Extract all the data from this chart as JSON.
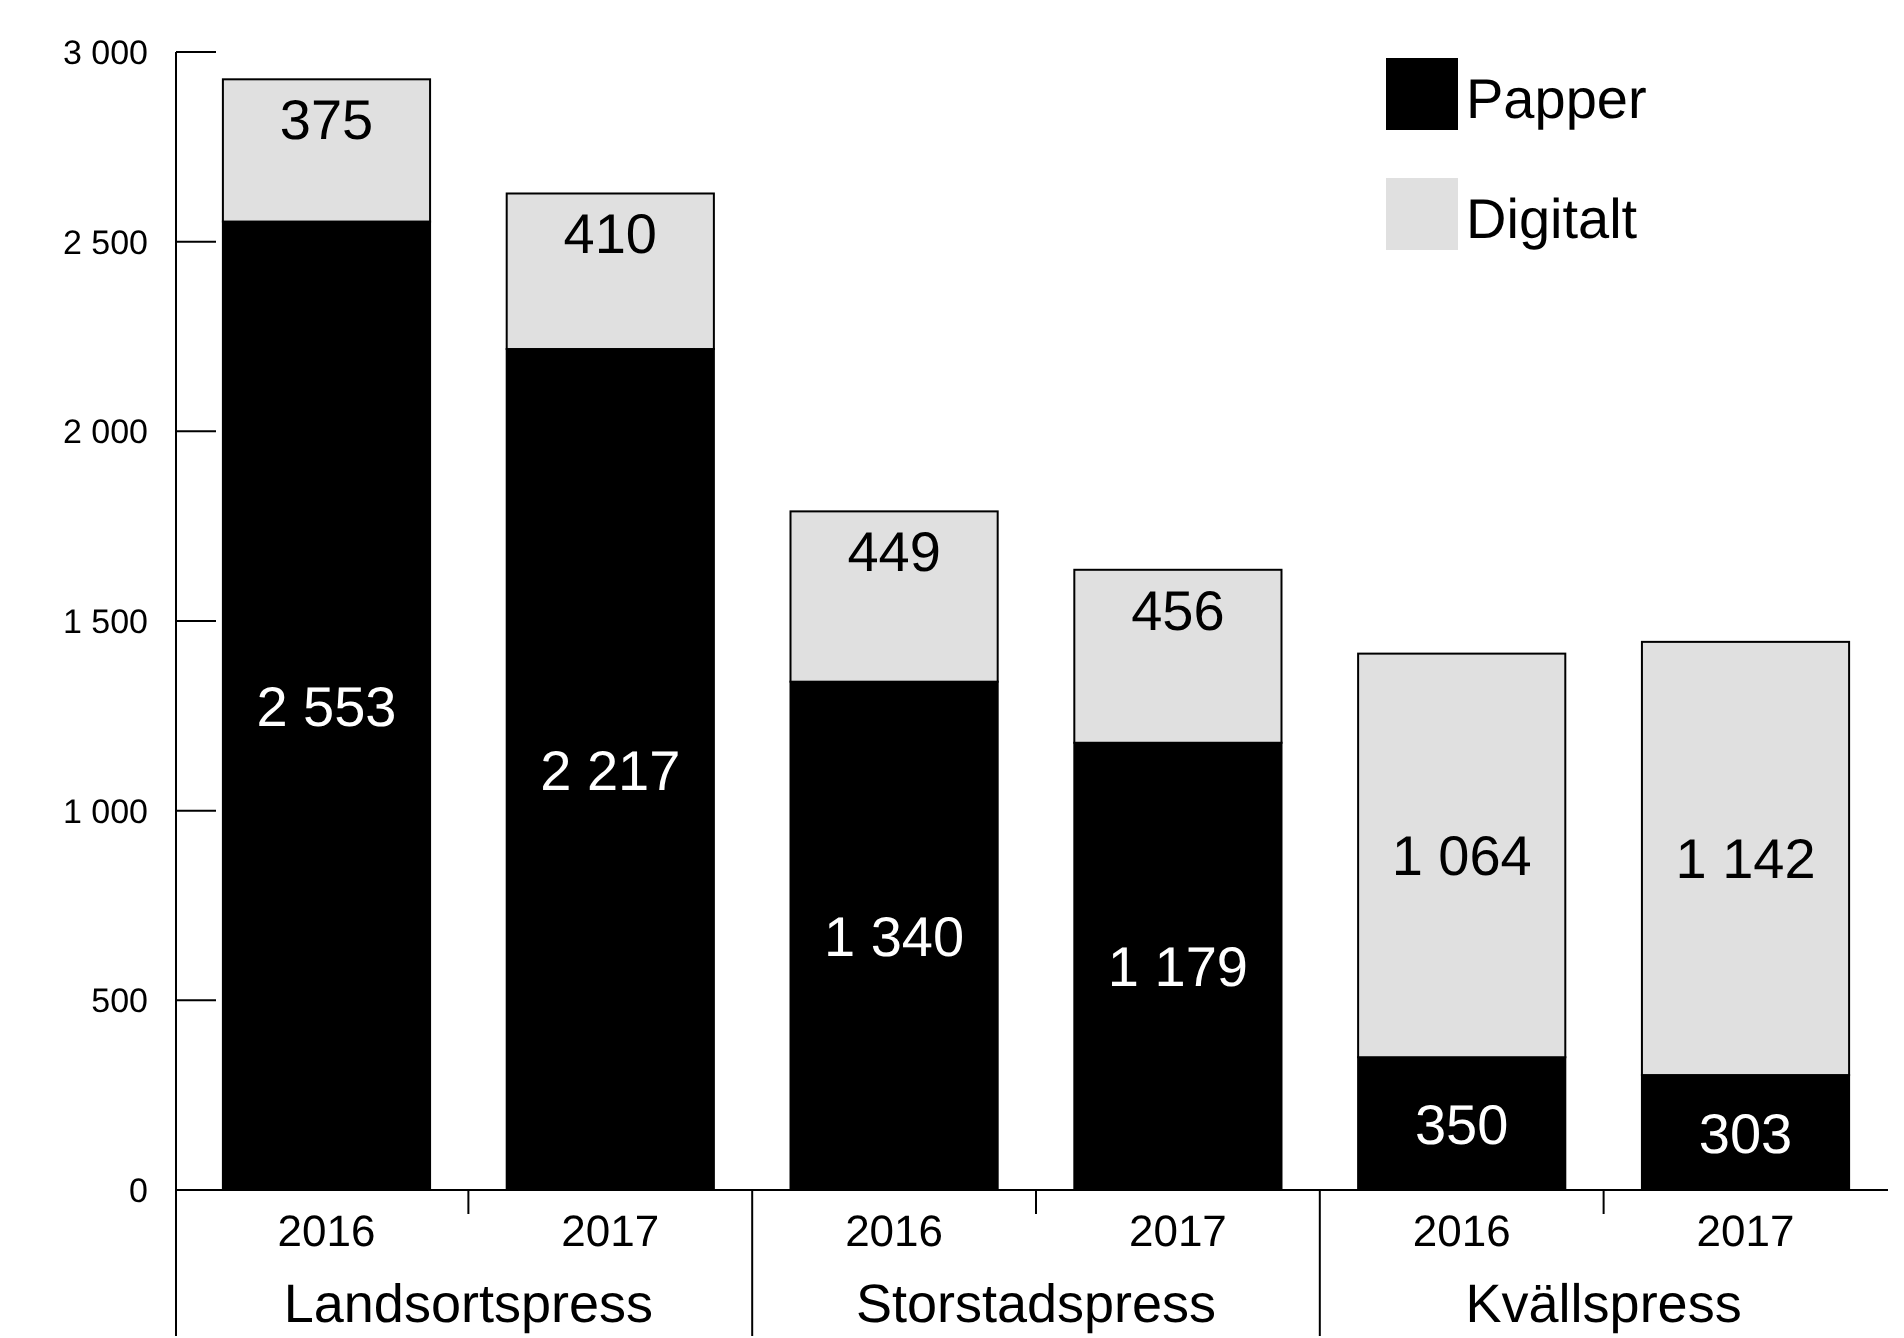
{
  "chart_data": {
    "type": "bar",
    "stacked": true,
    "categories": [
      "2016",
      "2017",
      "2016",
      "2017",
      "2016",
      "2017"
    ],
    "series": [
      {
        "name": "Papper",
        "color": "#000000",
        "values": [
          2553,
          2217,
          1340,
          1179,
          350,
          303
        ]
      },
      {
        "name": "Digitalt",
        "color": "#e0e0e0",
        "values": [
          375,
          410,
          449,
          456,
          1064,
          1142
        ]
      }
    ],
    "annotations": [
      "Landsortspress",
      "Storstadspress",
      "Kvällspress"
    ],
    "ylim": [
      0,
      3000
    ],
    "yticks": [
      0,
      {
        "value": 500,
        "label": "500"
      },
      {
        "value": 1000,
        "label": "1 000"
      },
      {
        "value": 1500,
        "label": "1 500"
      },
      {
        "value": 2000,
        "label": "2 000"
      },
      {
        "value": 2500,
        "label": "2 500"
      },
      {
        "value": 3000,
        "label": "3 000"
      }
    ],
    "data_labels": true,
    "legend": "top right",
    "grid": false
  }
}
